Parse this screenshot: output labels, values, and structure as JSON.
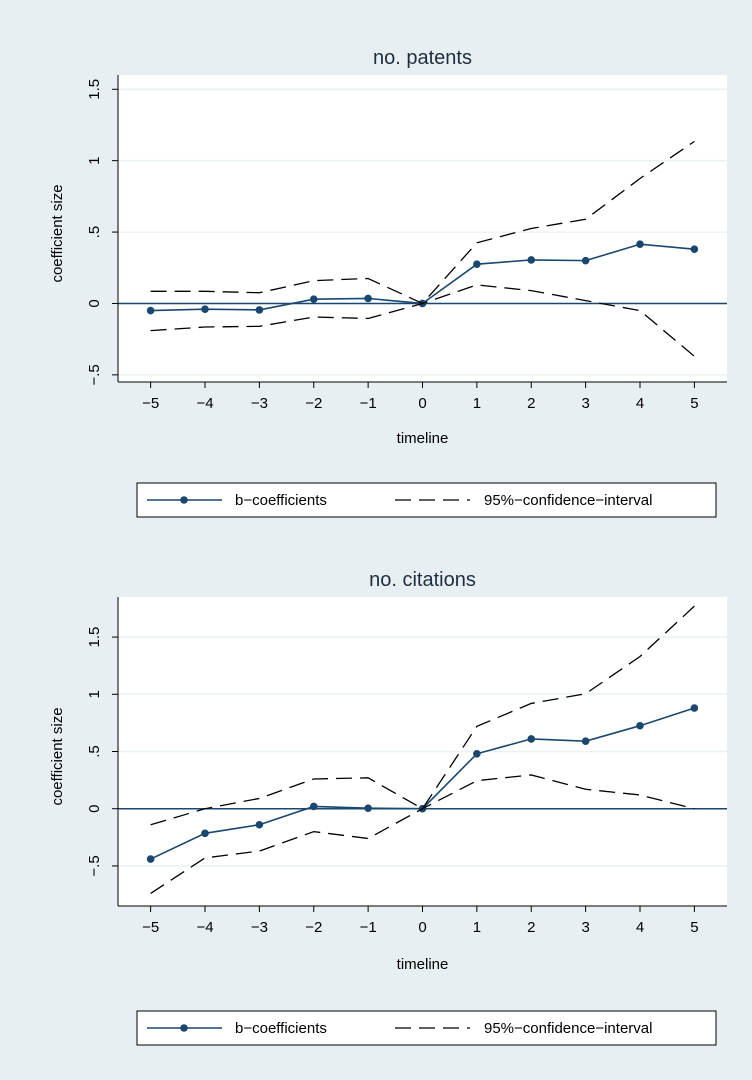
{
  "colors": {
    "background": "#e8eff3",
    "plot_area": "#ffffff",
    "series": "#1a476f",
    "ci": "#000000",
    "zero_line": "#1a476f",
    "grid": "#eaf2f3"
  },
  "chart_data": [
    {
      "type": "line",
      "title": "no. patents",
      "xlabel": "timeline",
      "ylabel": "coefficient size",
      "x": [
        -5,
        -4,
        -3,
        -2,
        -1,
        0,
        1,
        2,
        3,
        4,
        5
      ],
      "xticks": [
        "−5",
        "−4",
        "−3",
        "−2",
        "−1",
        "0",
        "1",
        "2",
        "3",
        "4",
        "5"
      ],
      "yticks": [
        {
          "value": -0.5,
          "label": "−.5"
        },
        {
          "value": 0,
          "label": "0"
        },
        {
          "value": 0.5,
          "label": ".5"
        },
        {
          "value": 1,
          "label": "1"
        },
        {
          "value": 1.5,
          "label": "1.5"
        }
      ],
      "xlim": [
        -5.6,
        5.6
      ],
      "ylim": [
        -0.55,
        1.6
      ],
      "grid": true,
      "zero_line": true,
      "legend": {
        "position": "bottom",
        "entries": [
          "b−coefficients",
          "95%−confidence−interval"
        ]
      },
      "series": [
        {
          "name": "b−coefficients",
          "style": "solid-markers",
          "values": [
            -0.05,
            -0.04,
            -0.045,
            0.03,
            0.035,
            0,
            0.275,
            0.305,
            0.3,
            0.415,
            0.38
          ]
        },
        {
          "name": "95%−confidence−interval upper",
          "style": "dashed",
          "values": [
            0.085,
            0.085,
            0.075,
            0.16,
            0.175,
            0,
            0.425,
            0.525,
            0.59,
            0.875,
            1.135
          ]
        },
        {
          "name": "95%−confidence−interval lower",
          "style": "dashed",
          "values": [
            -0.19,
            -0.165,
            -0.16,
            -0.095,
            -0.105,
            0,
            0.13,
            0.09,
            0.02,
            -0.05,
            -0.37
          ]
        }
      ]
    },
    {
      "type": "line",
      "title": "no. citations",
      "xlabel": "timeline",
      "ylabel": "coefficient size",
      "x": [
        -5,
        -4,
        -3,
        -2,
        -1,
        0,
        1,
        2,
        3,
        4,
        5
      ],
      "xticks": [
        "−5",
        "−4",
        "−3",
        "−2",
        "−1",
        "0",
        "1",
        "2",
        "3",
        "4",
        "5"
      ],
      "yticks": [
        {
          "value": -0.5,
          "label": "−.5"
        },
        {
          "value": 0,
          "label": "0"
        },
        {
          "value": 0.5,
          "label": ".5"
        },
        {
          "value": 1,
          "label": "1"
        },
        {
          "value": 1.5,
          "label": "1.5"
        }
      ],
      "xlim": [
        -5.6,
        5.6
      ],
      "ylim": [
        -0.85,
        1.85
      ],
      "grid": true,
      "zero_line": true,
      "legend": {
        "position": "bottom",
        "entries": [
          "b−coefficients",
          "95%−confidence−interval"
        ]
      },
      "series": [
        {
          "name": "b−coefficients",
          "style": "solid-markers",
          "values": [
            -0.44,
            -0.215,
            -0.14,
            0.02,
            0.005,
            0,
            0.48,
            0.61,
            0.59,
            0.725,
            0.88
          ]
        },
        {
          "name": "95%−confidence−interval upper",
          "style": "dashed",
          "values": [
            -0.14,
            0.0,
            0.09,
            0.26,
            0.27,
            0,
            0.72,
            0.92,
            1.005,
            1.33,
            1.77
          ]
        },
        {
          "name": "95%−confidence−interval lower",
          "style": "dashed",
          "values": [
            -0.74,
            -0.43,
            -0.37,
            -0.2,
            -0.26,
            0,
            0.245,
            0.295,
            0.17,
            0.12,
            0.0
          ]
        }
      ]
    }
  ]
}
